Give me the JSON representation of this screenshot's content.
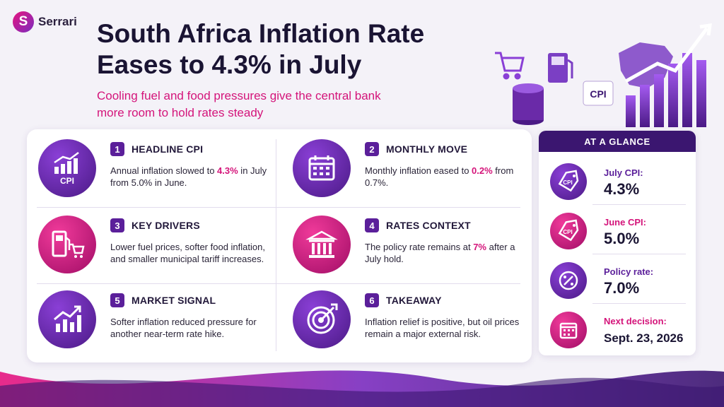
{
  "brand": {
    "name": "Serrari",
    "logo_letter": "S"
  },
  "header": {
    "title_line1": "South Africa Inflation Rate",
    "title_line2": "Eases to 4.3% in July",
    "subtitle_line1": "Cooling fuel and food pressures give the central bank",
    "subtitle_line2": "more room to hold rates steady"
  },
  "hero": {
    "cpi_label": "CPI"
  },
  "items": [
    {
      "num": "1",
      "heading": "HEADLINE CPI",
      "icon": "chart-cpi-icon",
      "icon_text": "CPI",
      "pre": "Annual inflation slowed to ",
      "highlight": "4.3%",
      "post": " in July from 5.0% in June."
    },
    {
      "num": "2",
      "heading": "MONTHLY MOVE",
      "icon": "calendar-icon",
      "pre": "Monthly inflation eased to ",
      "highlight": "0.2%",
      "post": " from 0.7%."
    },
    {
      "num": "3",
      "heading": "KEY DRIVERS",
      "icon": "fuel-cart-icon",
      "text": "Lower fuel prices, softer food inflation, and smaller municipal tariff increases."
    },
    {
      "num": "4",
      "heading": "RATES CONTEXT",
      "icon": "bank-icon",
      "pre": "The policy rate remains at ",
      "highlight": "7%",
      "post": " after a July hold."
    },
    {
      "num": "5",
      "heading": "MARKET SIGNAL",
      "icon": "trend-up-icon",
      "text": "Softer inflation reduced pressure for another near-term rate hike."
    },
    {
      "num": "6",
      "heading": "TAKEAWAY",
      "icon": "target-icon",
      "text": "Inflation relief is positive, but oil prices remain a major external risk."
    }
  ],
  "glance": {
    "title": "AT A GLANCE",
    "rows": [
      {
        "label": "July CPI:",
        "value": "4.3%",
        "icon": "cpi-tag-icon",
        "icon_text": "CPI"
      },
      {
        "label": "June CPI:",
        "value": "5.0%",
        "icon": "cpi-tag-icon",
        "icon_text": "CPI"
      },
      {
        "label": "Policy rate:",
        "value": "7.0%",
        "icon": "percent-icon"
      },
      {
        "label": "Next decision:",
        "value": "Sept. 23, 2026",
        "icon": "calendar-icon"
      }
    ]
  },
  "colors": {
    "purple": "#5b1f9a",
    "magenta": "#d4147a",
    "dark_navy": "#1a1433",
    "header_purple": "#3b1670"
  }
}
